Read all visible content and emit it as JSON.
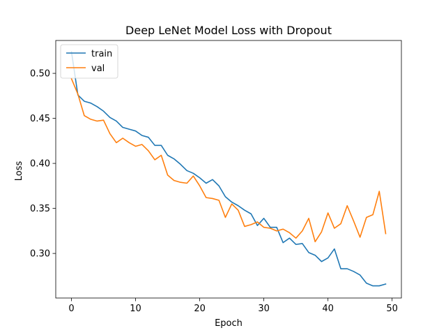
{
  "chart_data": {
    "type": "line",
    "title": "Deep LeNet Model Loss with Dropout",
    "xlabel": "Epoch",
    "ylabel": "Loss",
    "xlim": [
      -2.45,
      51.45
    ],
    "ylim": [
      0.2505,
      0.5365
    ],
    "x_ticks": [
      0,
      10,
      20,
      30,
      40,
      50
    ],
    "x_tick_labels": [
      "0",
      "10",
      "20",
      "30",
      "40",
      "50"
    ],
    "y_ticks": [
      0.3,
      0.35,
      0.4,
      0.45,
      0.5
    ],
    "y_tick_labels": [
      "0.30",
      "0.35",
      "0.40",
      "0.45",
      "0.50"
    ],
    "grid": false,
    "legend_position": "upper left",
    "x": [
      0,
      1,
      2,
      3,
      4,
      5,
      6,
      7,
      8,
      9,
      10,
      11,
      12,
      13,
      14,
      15,
      16,
      17,
      18,
      19,
      20,
      21,
      22,
      23,
      24,
      25,
      26,
      27,
      28,
      29,
      30,
      31,
      32,
      33,
      34,
      35,
      36,
      37,
      38,
      39,
      40,
      41,
      42,
      43,
      44,
      45,
      46,
      47,
      48,
      49
    ],
    "series": [
      {
        "name": "train",
        "color": "#1f77b4",
        "values": [
          0.524,
          0.476,
          0.469,
          0.467,
          0.463,
          0.458,
          0.451,
          0.447,
          0.44,
          0.438,
          0.436,
          0.431,
          0.429,
          0.42,
          0.42,
          0.409,
          0.405,
          0.399,
          0.392,
          0.389,
          0.384,
          0.378,
          0.382,
          0.375,
          0.363,
          0.357,
          0.353,
          0.348,
          0.344,
          0.331,
          0.339,
          0.329,
          0.329,
          0.312,
          0.317,
          0.31,
          0.311,
          0.301,
          0.298,
          0.291,
          0.295,
          0.305,
          0.283,
          0.283,
          0.28,
          0.276,
          0.267,
          0.264,
          0.264,
          0.266
        ]
      },
      {
        "name": "val",
        "color": "#ff7f0e",
        "values": [
          0.494,
          0.477,
          0.453,
          0.449,
          0.447,
          0.448,
          0.433,
          0.423,
          0.428,
          0.423,
          0.419,
          0.421,
          0.414,
          0.404,
          0.409,
          0.387,
          0.381,
          0.379,
          0.378,
          0.386,
          0.375,
          0.362,
          0.361,
          0.359,
          0.34,
          0.355,
          0.348,
          0.33,
          0.332,
          0.335,
          0.329,
          0.328,
          0.325,
          0.327,
          0.323,
          0.317,
          0.325,
          0.339,
          0.313,
          0.324,
          0.345,
          0.328,
          0.333,
          0.353,
          0.336,
          0.318,
          0.34,
          0.343,
          0.369,
          0.322
        ]
      }
    ]
  }
}
